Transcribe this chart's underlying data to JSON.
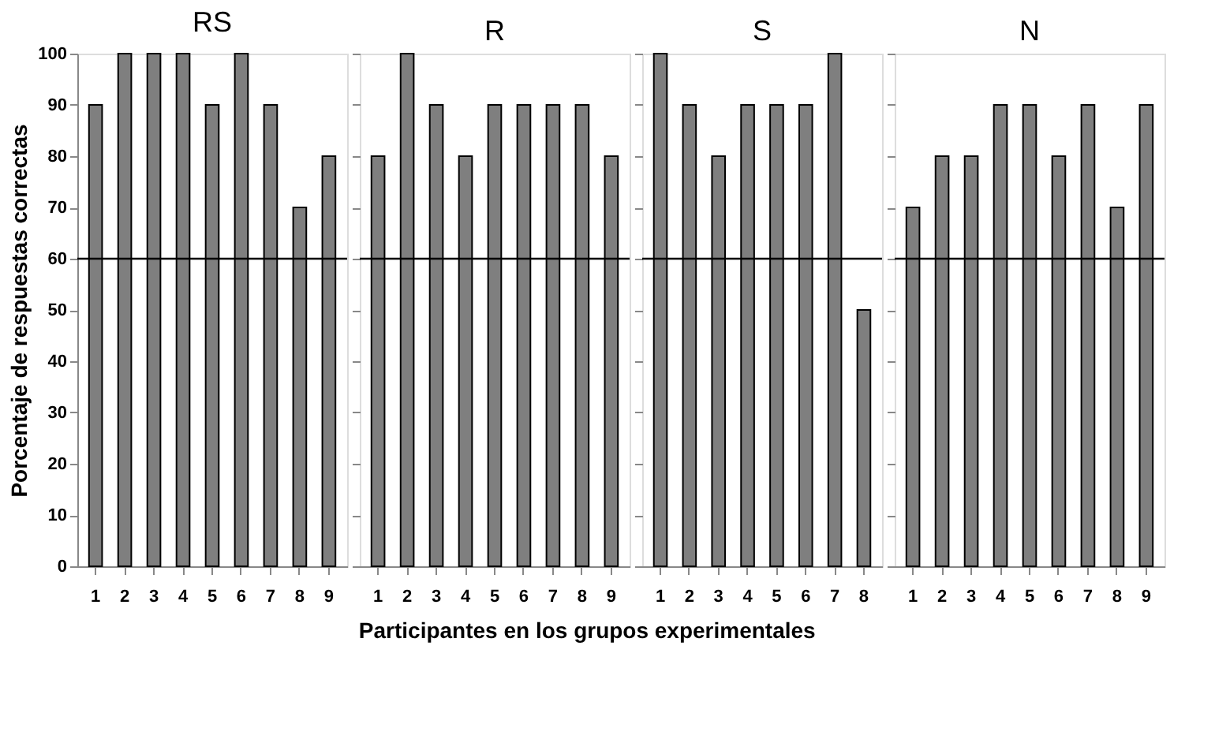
{
  "chart_data": [
    {
      "type": "bar",
      "title": "RS",
      "ylabel": "Porcentaje de respuestas correctas",
      "xlabel": "Participantes en los grupos experimentales",
      "categories": [
        "1",
        "2",
        "3",
        "4",
        "5",
        "6",
        "7",
        "8",
        "9"
      ],
      "values": [
        90,
        100,
        100,
        100,
        90,
        100,
        90,
        70,
        80
      ],
      "color": "#7f7f7f",
      "ylim": [
        0,
        100
      ],
      "yticks": [
        0,
        10,
        20,
        30,
        40,
        50,
        60,
        70,
        80,
        90,
        100
      ],
      "grid": false,
      "ref_lines": [
        {
          "axis": "y",
          "value": 60,
          "color": "#000000"
        }
      ]
    },
    {
      "type": "bar",
      "title": "R",
      "categories": [
        "1",
        "2",
        "3",
        "4",
        "5",
        "6",
        "7",
        "8",
        "9"
      ],
      "values": [
        80,
        100,
        90,
        80,
        90,
        90,
        90,
        90,
        80
      ],
      "color": "#7f7f7f",
      "ylim": [
        0,
        100
      ],
      "yticks": [
        0,
        10,
        20,
        30,
        40,
        50,
        60,
        70,
        80,
        90,
        100
      ],
      "tick_labels": "x",
      "grid": false,
      "ref_lines": [
        {
          "axis": "y",
          "value": 60,
          "color": "#000000"
        }
      ]
    },
    {
      "type": "bar",
      "title": "S",
      "categories": [
        "1",
        "2",
        "3",
        "4",
        "5",
        "6",
        "7",
        "8"
      ],
      "values": [
        100,
        90,
        80,
        90,
        90,
        90,
        100,
        50
      ],
      "color": "#7f7f7f",
      "ylim": [
        0,
        100
      ],
      "yticks": [
        0,
        10,
        20,
        30,
        40,
        50,
        60,
        70,
        80,
        90,
        100
      ],
      "tick_labels": "x",
      "grid": false,
      "ref_lines": [
        {
          "axis": "y",
          "value": 60,
          "color": "#000000"
        }
      ]
    },
    {
      "type": "bar",
      "title": "N",
      "categories": [
        "1",
        "2",
        "3",
        "4",
        "5",
        "6",
        "7",
        "8",
        "9"
      ],
      "values": [
        70,
        80,
        80,
        90,
        90,
        80,
        90,
        70,
        90
      ],
      "color": "#7f7f7f",
      "ylim": [
        0,
        100
      ],
      "yticks": [
        0,
        10,
        20,
        30,
        40,
        50,
        60,
        70,
        80,
        90,
        100
      ],
      "tick_labels": "x",
      "grid": false,
      "ref_lines": [
        {
          "axis": "y",
          "value": 60,
          "color": "#000000"
        }
      ]
    }
  ]
}
